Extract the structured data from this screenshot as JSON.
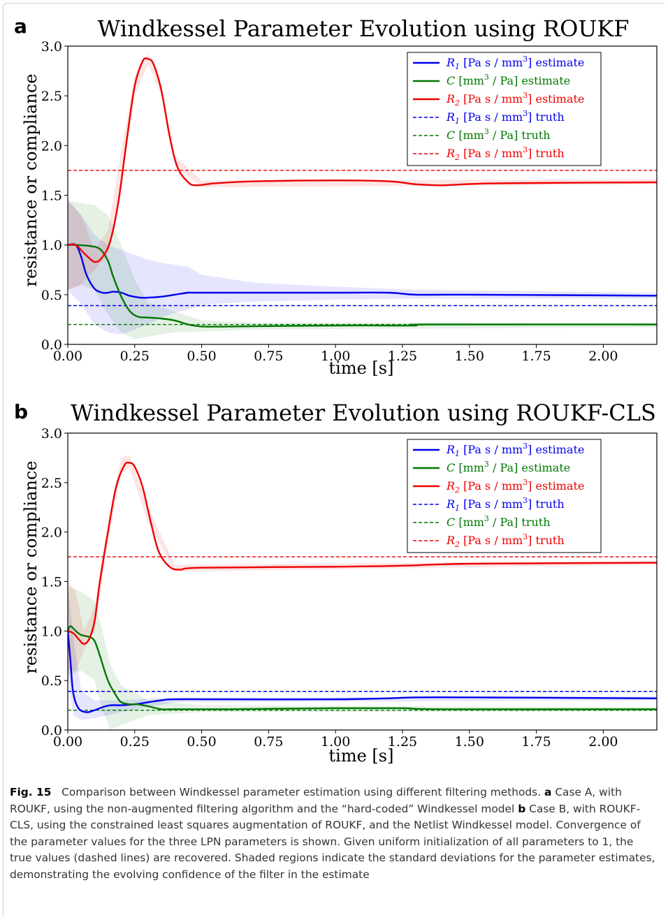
{
  "chart_data": [
    {
      "panel": "a",
      "type": "line",
      "title": "Windkessel Parameter Evolution using ROUKF",
      "xlabel": "time [s]",
      "ylabel": "resistance or compliance",
      "xlim": [
        0.0,
        2.2
      ],
      "ylim": [
        0.0,
        3.0
      ],
      "xticks": [
        "0.00",
        "0.25",
        "0.50",
        "0.75",
        "1.00",
        "1.25",
        "1.50",
        "1.75",
        "2.00"
      ],
      "yticks": [
        "0.0",
        "0.5",
        "1.0",
        "1.5",
        "2.0",
        "2.5",
        "3.0"
      ],
      "legend_position": "top-right",
      "series": [
        {
          "name": "R1 [Pa s / mm3] estimate",
          "color": "#0000ee",
          "style": "solid",
          "points": [
            [
              0,
              1.0
            ],
            [
              0.03,
              1.0
            ],
            [
              0.05,
              0.88
            ],
            [
              0.07,
              0.7
            ],
            [
              0.1,
              0.56
            ],
            [
              0.13,
              0.52
            ],
            [
              0.15,
              0.52
            ],
            [
              0.17,
              0.53
            ],
            [
              0.2,
              0.52
            ],
            [
              0.23,
              0.49
            ],
            [
              0.27,
              0.47
            ],
            [
              0.3,
              0.47
            ],
            [
              0.35,
              0.48
            ],
            [
              0.4,
              0.5
            ],
            [
              0.45,
              0.52
            ],
            [
              0.5,
              0.52
            ],
            [
              1.0,
              0.52
            ],
            [
              1.2,
              0.52
            ],
            [
              1.3,
              0.5
            ],
            [
              1.5,
              0.5
            ],
            [
              2.2,
              0.49
            ]
          ],
          "band": [
            [
              0,
              0.55,
              1.45
            ],
            [
              0.05,
              0.4,
              1.3
            ],
            [
              0.1,
              0.2,
              1.1
            ],
            [
              0.15,
              0.12,
              1.0
            ],
            [
              0.2,
              0.1,
              0.95
            ],
            [
              0.25,
              0.15,
              0.9
            ],
            [
              0.3,
              0.2,
              0.85
            ],
            [
              0.35,
              0.27,
              0.82
            ],
            [
              0.4,
              0.32,
              0.8
            ],
            [
              0.45,
              0.35,
              0.78
            ],
            [
              0.5,
              0.4,
              0.7
            ],
            [
              0.7,
              0.43,
              0.62
            ],
            [
              1.0,
              0.45,
              0.58
            ],
            [
              1.3,
              0.46,
              0.55
            ],
            [
              2.2,
              0.46,
              0.52
            ]
          ]
        },
        {
          "name": "C [mm3 / Pa] estimate",
          "color": "#007700",
          "style": "solid",
          "points": [
            [
              0,
              1.0
            ],
            [
              0.03,
              1.0
            ],
            [
              0.08,
              0.99
            ],
            [
              0.12,
              0.96
            ],
            [
              0.15,
              0.84
            ],
            [
              0.17,
              0.68
            ],
            [
              0.2,
              0.48
            ],
            [
              0.23,
              0.34
            ],
            [
              0.26,
              0.28
            ],
            [
              0.3,
              0.27
            ],
            [
              0.35,
              0.26
            ],
            [
              0.4,
              0.24
            ],
            [
              0.45,
              0.2
            ],
            [
              0.5,
              0.18
            ],
            [
              0.6,
              0.18
            ],
            [
              1.0,
              0.19
            ],
            [
              1.2,
              0.19
            ],
            [
              1.3,
              0.19
            ],
            [
              1.35,
              0.2
            ],
            [
              2.2,
              0.2
            ]
          ],
          "band": [
            [
              0,
              0.55,
              1.45
            ],
            [
              0.05,
              0.6,
              1.42
            ],
            [
              0.1,
              0.55,
              1.4
            ],
            [
              0.15,
              0.3,
              1.3
            ],
            [
              0.2,
              0.12,
              1.0
            ],
            [
              0.25,
              0.05,
              0.65
            ],
            [
              0.3,
              0.08,
              0.42
            ],
            [
              0.4,
              0.12,
              0.33
            ],
            [
              0.5,
              0.13,
              0.24
            ],
            [
              0.7,
              0.15,
              0.22
            ],
            [
              2.2,
              0.17,
              0.22
            ]
          ]
        },
        {
          "name": "R2 [Pa s / mm3] estimate",
          "color": "#ee0000",
          "style": "solid",
          "points": [
            [
              0,
              1.0
            ],
            [
              0.03,
              1.0
            ],
            [
              0.06,
              0.92
            ],
            [
              0.1,
              0.83
            ],
            [
              0.13,
              0.88
            ],
            [
              0.16,
              1.05
            ],
            [
              0.19,
              1.45
            ],
            [
              0.22,
              2.05
            ],
            [
              0.25,
              2.6
            ],
            [
              0.28,
              2.85
            ],
            [
              0.3,
              2.87
            ],
            [
              0.32,
              2.82
            ],
            [
              0.35,
              2.55
            ],
            [
              0.38,
              2.1
            ],
            [
              0.41,
              1.78
            ],
            [
              0.45,
              1.63
            ],
            [
              0.48,
              1.6
            ],
            [
              0.55,
              1.62
            ],
            [
              0.7,
              1.64
            ],
            [
              1.0,
              1.65
            ],
            [
              1.2,
              1.64
            ],
            [
              1.3,
              1.61
            ],
            [
              1.4,
              1.6
            ],
            [
              1.6,
              1.62
            ],
            [
              2.2,
              1.63
            ]
          ],
          "band": [
            [
              0,
              0.55,
              1.45
            ],
            [
              0.05,
              0.6,
              1.3
            ],
            [
              0.1,
              0.75,
              0.95
            ],
            [
              0.15,
              0.9,
              1.15
            ],
            [
              0.2,
              1.6,
              1.95
            ],
            [
              0.25,
              2.5,
              2.7
            ],
            [
              0.3,
              2.82,
              2.92
            ],
            [
              0.35,
              2.5,
              2.6
            ],
            [
              0.4,
              1.8,
              1.9
            ],
            [
              0.5,
              1.58,
              1.65
            ],
            [
              2.2,
              1.61,
              1.66
            ]
          ]
        },
        {
          "name": "R1 [Pa s / mm3] truth",
          "color": "#0000ee",
          "style": "dashed",
          "value": 0.39
        },
        {
          "name": "C [mm3 / Pa] truth",
          "color": "#007700",
          "style": "dashed",
          "value": 0.2
        },
        {
          "name": "R2 [Pa s / mm3] truth",
          "color": "#ee0000",
          "style": "dashed",
          "value": 1.75
        }
      ]
    },
    {
      "panel": "b",
      "type": "line",
      "title": "Windkessel Parameter Evolution using ROUKF-CLS",
      "xlabel": "time [s]",
      "ylabel": "resistance or compliance",
      "xlim": [
        0.0,
        2.2
      ],
      "ylim": [
        0.0,
        3.0
      ],
      "xticks": [
        "0.00",
        "0.25",
        "0.50",
        "0.75",
        "1.00",
        "1.25",
        "1.50",
        "1.75",
        "2.00"
      ],
      "yticks": [
        "0.0",
        "0.5",
        "1.0",
        "1.5",
        "2.0",
        "2.5",
        "3.0"
      ],
      "legend_position": "top-right",
      "series": [
        {
          "name": "R1 [Pa s / mm3] estimate",
          "color": "#0000ee",
          "style": "solid",
          "points": [
            [
              0,
              1.0
            ],
            [
              0.01,
              0.7
            ],
            [
              0.02,
              0.38
            ],
            [
              0.04,
              0.22
            ],
            [
              0.07,
              0.18
            ],
            [
              0.1,
              0.2
            ],
            [
              0.13,
              0.23
            ],
            [
              0.16,
              0.25
            ],
            [
              0.2,
              0.25
            ],
            [
              0.25,
              0.26
            ],
            [
              0.3,
              0.28
            ],
            [
              0.35,
              0.3
            ],
            [
              0.4,
              0.31
            ],
            [
              0.6,
              0.31
            ],
            [
              1.0,
              0.31
            ],
            [
              1.2,
              0.32
            ],
            [
              1.3,
              0.33
            ],
            [
              1.5,
              0.33
            ],
            [
              2.2,
              0.32
            ]
          ],
          "band": [
            [
              0,
              0.55,
              1.45
            ],
            [
              0.02,
              0.15,
              0.95
            ],
            [
              0.05,
              0.1,
              0.4
            ],
            [
              0.1,
              0.12,
              0.3
            ],
            [
              0.2,
              0.18,
              0.3
            ],
            [
              0.4,
              0.28,
              0.33
            ],
            [
              2.2,
              0.3,
              0.34
            ]
          ]
        },
        {
          "name": "C [mm3 / Pa] estimate",
          "color": "#007700",
          "style": "solid",
          "points": [
            [
              0,
              1.0
            ],
            [
              0.01,
              1.05
            ],
            [
              0.03,
              1.0
            ],
            [
              0.05,
              0.96
            ],
            [
              0.08,
              0.94
            ],
            [
              0.1,
              0.9
            ],
            [
              0.12,
              0.75
            ],
            [
              0.15,
              0.5
            ],
            [
              0.18,
              0.35
            ],
            [
              0.2,
              0.28
            ],
            [
              0.23,
              0.26
            ],
            [
              0.26,
              0.26
            ],
            [
              0.3,
              0.24
            ],
            [
              0.35,
              0.21
            ],
            [
              0.4,
              0.21
            ],
            [
              0.6,
              0.21
            ],
            [
              1.0,
              0.22
            ],
            [
              1.25,
              0.22
            ],
            [
              1.4,
              0.21
            ],
            [
              2.2,
              0.21
            ]
          ],
          "band": [
            [
              0,
              0.55,
              1.45
            ],
            [
              0.05,
              0.6,
              1.4
            ],
            [
              0.1,
              0.5,
              1.3
            ],
            [
              0.13,
              0.2,
              1.0
            ],
            [
              0.16,
              0.0,
              0.65
            ],
            [
              0.2,
              0.05,
              0.45
            ],
            [
              0.3,
              0.15,
              0.3
            ],
            [
              0.5,
              0.18,
              0.25
            ],
            [
              2.2,
              0.19,
              0.23
            ]
          ]
        },
        {
          "name": "R2 [Pa s / mm3] estimate",
          "color": "#ee0000",
          "style": "solid",
          "points": [
            [
              0,
              1.0
            ],
            [
              0.02,
              0.98
            ],
            [
              0.04,
              0.92
            ],
            [
              0.06,
              0.87
            ],
            [
              0.08,
              0.92
            ],
            [
              0.1,
              1.1
            ],
            [
              0.12,
              1.5
            ],
            [
              0.15,
              2.0
            ],
            [
              0.18,
              2.45
            ],
            [
              0.21,
              2.67
            ],
            [
              0.23,
              2.7
            ],
            [
              0.25,
              2.66
            ],
            [
              0.28,
              2.45
            ],
            [
              0.31,
              2.1
            ],
            [
              0.34,
              1.8
            ],
            [
              0.38,
              1.65
            ],
            [
              0.42,
              1.62
            ],
            [
              0.5,
              1.64
            ],
            [
              1.0,
              1.65
            ],
            [
              1.25,
              1.66
            ],
            [
              1.5,
              1.68
            ],
            [
              2.2,
              1.69
            ]
          ],
          "band": [
            [
              0,
              0.6,
              1.5
            ],
            [
              0.03,
              0.6,
              1.4
            ],
            [
              0.06,
              0.8,
              1.0
            ],
            [
              0.1,
              1.0,
              1.25
            ],
            [
              0.15,
              1.9,
              2.1
            ],
            [
              0.2,
              2.6,
              2.75
            ],
            [
              0.23,
              2.65,
              2.78
            ],
            [
              0.3,
              2.1,
              2.25
            ],
            [
              0.4,
              1.6,
              1.67
            ],
            [
              2.2,
              1.67,
              1.71
            ]
          ]
        },
        {
          "name": "R1 [Pa s / mm3] truth",
          "color": "#0000ee",
          "style": "dashed",
          "value": 0.39
        },
        {
          "name": "C [mm3 / Pa] truth",
          "color": "#007700",
          "style": "dashed",
          "value": 0.2
        },
        {
          "name": "R2 [Pa s / mm3] truth",
          "color": "#ee0000",
          "style": "dashed",
          "value": 1.75
        }
      ]
    }
  ],
  "panels": {
    "a": {
      "letter": "a",
      "legend": [
        {
          "sym": "R",
          "sub": "1",
          "rest": " [Pa s / mm",
          "sup": "3",
          "tail": "] estimate"
        },
        {
          "sym": "C",
          "sub": "",
          "rest": " [mm",
          "sup": "3",
          "tail": " / Pa] estimate"
        },
        {
          "sym": "R",
          "sub": "2",
          "rest": " [Pa s / mm",
          "sup": "3",
          "tail": "] estimate"
        },
        {
          "sym": "R",
          "sub": "1",
          "rest": " [Pa s / mm",
          "sup": "3",
          "tail": "] truth"
        },
        {
          "sym": "C",
          "sub": "",
          "rest": " [mm",
          "sup": "3",
          "tail": " / Pa] truth"
        },
        {
          "sym": "R",
          "sub": "2",
          "rest": " [Pa s / mm",
          "sup": "3",
          "tail": "] truth"
        }
      ]
    },
    "b": {
      "letter": "b",
      "legend": [
        {
          "sym": "R",
          "sub": "1",
          "rest": " [Pa s / mm",
          "sup": "3",
          "tail": "] estimate"
        },
        {
          "sym": "C",
          "sub": "",
          "rest": " [mm",
          "sup": "3",
          "tail": " / Pa] estimate"
        },
        {
          "sym": "R",
          "sub": "2",
          "rest": " [Pa s / mm",
          "sup": "3",
          "tail": "] estimate"
        },
        {
          "sym": "R",
          "sub": "1",
          "rest": " [Pa s / mm",
          "sup": "3",
          "tail": "] truth"
        },
        {
          "sym": "C",
          "sub": "",
          "rest": " [mm",
          "sup": "3",
          "tail": " / Pa] truth"
        },
        {
          "sym": "R",
          "sub": "2",
          "rest": " [Pa s / mm",
          "sup": "3",
          "tail": "] truth"
        }
      ]
    }
  },
  "caption": {
    "label": "Fig. 15",
    "intro": "Comparison between Windkessel parameter estimation using different filtering methods.",
    "a_label": "a",
    "a_text": "Case A, with ROUKF, using the non-augmented filtering algorithm and the “hard-coded” Windkessel model",
    "b_label": "b",
    "b_text": "Case B, with ROUKF-CLS, using the constrained least squares augmentation of ROUKF, and the Netlist Windkessel model. Convergence of the parameter values for the three LPN parameters is shown. Given uniform initialization of all parameters to 1, the true values (dashed lines) are recovered. Shaded regions indicate the standard deviations for the parameter estimates, demonstrating the evolving confidence of the filter in the estimate"
  }
}
